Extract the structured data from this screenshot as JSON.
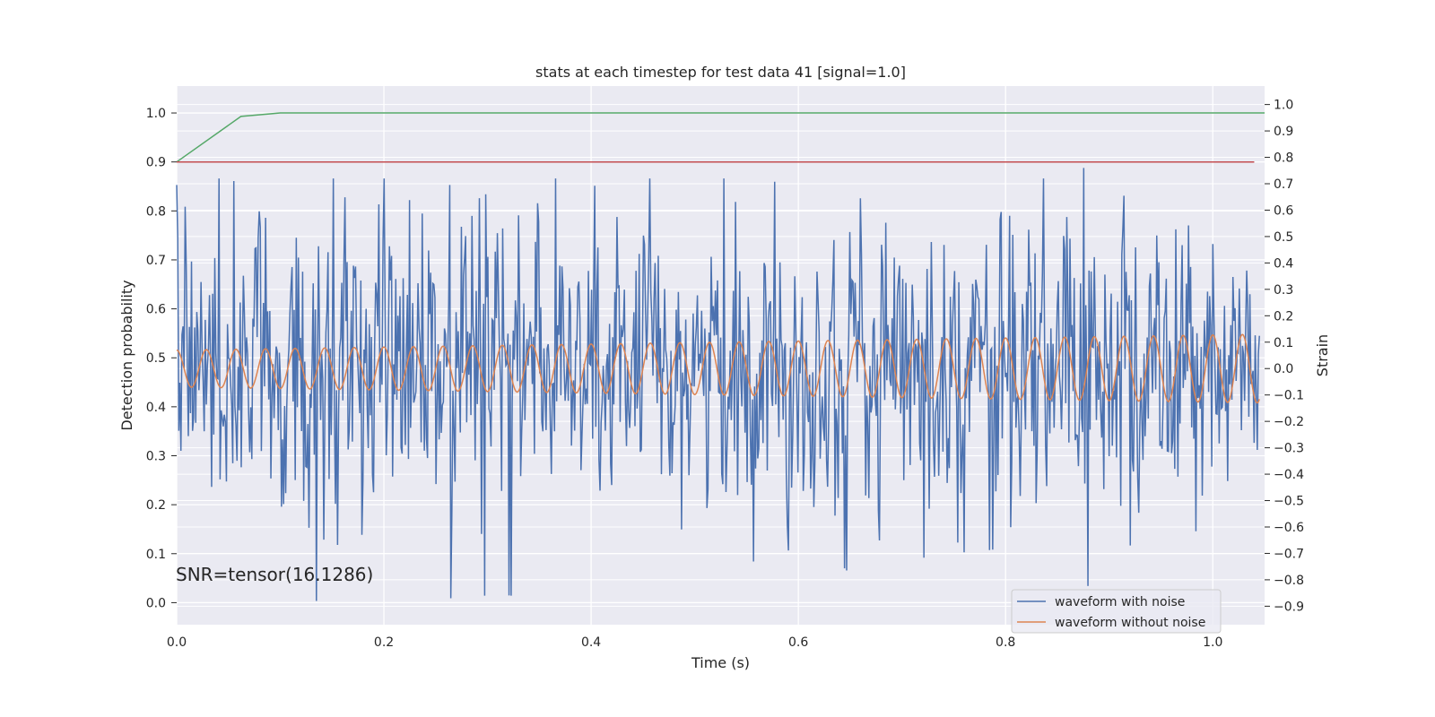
{
  "chart_data": {
    "type": "line",
    "title": "stats at each timestep for test data 41 [signal=1.0]",
    "xlabel": "Time (s)",
    "ylabel_left": "Detection probability",
    "ylabel_right": "Strain",
    "xlim": [
      0.0,
      1.05
    ],
    "ylim_left": [
      -0.045,
      1.055
    ],
    "ylim_right": [
      -0.97,
      1.07
    ],
    "x_ticks": [
      0.0,
      0.2,
      0.4,
      0.6,
      0.8,
      1.0
    ],
    "x_tick_labels": [
      "0.0",
      "0.2",
      "0.4",
      "0.6",
      "0.8",
      "1.0"
    ],
    "y_left_ticks": [
      0.0,
      0.1,
      0.2,
      0.3,
      0.4,
      0.5,
      0.6,
      0.7,
      0.8,
      0.9,
      1.0
    ],
    "y_left_tick_labels": [
      "0.0",
      "0.1",
      "0.2",
      "0.3",
      "0.4",
      "0.5",
      "0.6",
      "0.7",
      "0.8",
      "0.9",
      "1.0"
    ],
    "y_right_ticks": [
      -0.9,
      -0.8,
      -0.7,
      -0.6,
      -0.5,
      -0.4,
      -0.3,
      -0.2,
      -0.1,
      0.0,
      0.1,
      0.2,
      0.3,
      0.4,
      0.5,
      0.6,
      0.7,
      0.8,
      0.9,
      1.0
    ],
    "y_right_tick_labels": [
      "−0.9",
      "−0.8",
      "−0.7",
      "−0.6",
      "−0.5",
      "−0.4",
      "−0.3",
      "−0.2",
      "−0.1",
      "0.0",
      "0.1",
      "0.2",
      "0.3",
      "0.4",
      "0.5",
      "0.6",
      "0.7",
      "0.8",
      "0.9",
      "1.0"
    ],
    "grid": true,
    "annotation": "SNR=tensor(16.1286)",
    "legend": {
      "placement": "lower right",
      "entries": [
        "waveform with noise",
        "waveform without noise"
      ]
    },
    "series": [
      {
        "name": "waveform with noise",
        "axis": "right",
        "color": "#4c72b0",
        "x_start": 0.0,
        "x_end": 1.045,
        "points": 1024,
        "approx_std": 0.27,
        "peak_values": [
          {
            "x": 0.055,
            "y": 0.71
          },
          {
            "x": 0.135,
            "y": -0.88
          },
          {
            "x": 0.265,
            "y": -0.87
          },
          {
            "x": 0.298,
            "y": 0.66
          },
          {
            "x": 0.875,
            "y": 0.76
          },
          {
            "x": 0.92,
            "y": -0.67
          }
        ]
      },
      {
        "name": "waveform without noise",
        "axis": "right",
        "color": "#dd8452",
        "x_start": 0.0,
        "x_end": 1.045,
        "frequency_hz": 35,
        "amplitude_start": 0.07,
        "amplitude_end": 0.13
      },
      {
        "axis": "left",
        "color": "#55a868",
        "x": [
          0.0,
          0.062,
          0.1,
          1.05
        ],
        "y": [
          0.9,
          0.993,
          1.0,
          1.0
        ]
      },
      {
        "axis": "left",
        "color": "#c44e52",
        "x": [
          0.0,
          1.04
        ],
        "y": [
          0.9,
          0.9
        ]
      }
    ]
  }
}
